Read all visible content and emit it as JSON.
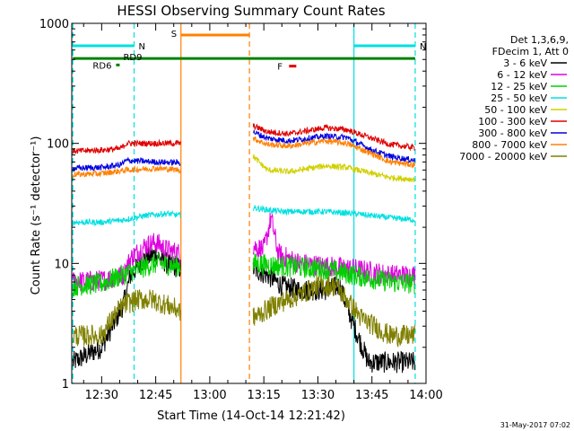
{
  "chart_data": {
    "type": "line",
    "title": "HESSI Observing Summary Count Rates",
    "xlabel": "Start Time (14-Oct-14 12:21:42)",
    "ylabel": "Count Rate (s⁻¹ detector⁻¹)",
    "yscale": "log",
    "ylim": [
      1,
      1000
    ],
    "xlim": [
      "12:21:42",
      "14:00:00"
    ],
    "x_ticks": [
      "12:30",
      "12:45",
      "13:00",
      "13:15",
      "13:30",
      "13:45",
      "14:00"
    ],
    "y_ticks": [
      "1",
      "10",
      "100",
      "1000"
    ],
    "date_stamp": "31-May-2017 07:02",
    "legend_header": [
      "Det 1,3,6,9,",
      "FDecim 1, Att 0"
    ],
    "legend_position": "right",
    "series": [
      {
        "name": "3 - 6 keV",
        "color": "#000000",
        "values": [
          {
            "x": "12:22",
            "y": 1.5
          },
          {
            "x": "12:30",
            "y": 2.0
          },
          {
            "x": "12:36",
            "y": 4.5
          },
          {
            "x": "12:38",
            "y": 8.0
          },
          {
            "x": "12:42",
            "y": 11.0
          },
          {
            "x": "12:45",
            "y": 12.0
          },
          {
            "x": "12:48",
            "y": 10.0
          },
          {
            "x": "12:52",
            "y": 9.0
          },
          {
            "x": "13:12",
            "y": 9.0
          },
          {
            "x": "13:16",
            "y": 8.0
          },
          {
            "x": "13:20",
            "y": 6.5
          },
          {
            "x": "13:25",
            "y": 6.0
          },
          {
            "x": "13:32",
            "y": 6.0
          },
          {
            "x": "13:36",
            "y": 6.5
          },
          {
            "x": "13:40",
            "y": 3.0
          },
          {
            "x": "13:44",
            "y": 1.5
          },
          {
            "x": "13:50",
            "y": 1.5
          },
          {
            "x": "13:57",
            "y": 1.5
          }
        ]
      },
      {
        "name": "6 - 12 keV",
        "color": "#e000e0",
        "values": [
          {
            "x": "12:22",
            "y": 7.0
          },
          {
            "x": "12:30",
            "y": 7.2
          },
          {
            "x": "12:36",
            "y": 8.0
          },
          {
            "x": "12:38",
            "y": 11.0
          },
          {
            "x": "12:42",
            "y": 14.0
          },
          {
            "x": "12:45",
            "y": 15.0
          },
          {
            "x": "12:48",
            "y": 13.0
          },
          {
            "x": "12:52",
            "y": 12.0
          },
          {
            "x": "13:12",
            "y": 14.0
          },
          {
            "x": "13:15",
            "y": 13.0
          },
          {
            "x": "13:17",
            "y": 24.0
          },
          {
            "x": "13:19",
            "y": 12.0
          },
          {
            "x": "13:25",
            "y": 10.0
          },
          {
            "x": "13:32",
            "y": 9.5
          },
          {
            "x": "13:40",
            "y": 9.0
          },
          {
            "x": "13:50",
            "y": 8.0
          },
          {
            "x": "13:57",
            "y": 8.0
          }
        ]
      },
      {
        "name": "12 - 25 keV",
        "color": "#00d000",
        "values": [
          {
            "x": "12:22",
            "y": 6.5
          },
          {
            "x": "12:30",
            "y": 6.8
          },
          {
            "x": "12:38",
            "y": 8.5
          },
          {
            "x": "12:45",
            "y": 10.0
          },
          {
            "x": "12:52",
            "y": 9.5
          },
          {
            "x": "13:12",
            "y": 10.0
          },
          {
            "x": "13:20",
            "y": 9.5
          },
          {
            "x": "13:32",
            "y": 9.0
          },
          {
            "x": "13:40",
            "y": 8.0
          },
          {
            "x": "13:50",
            "y": 7.0
          },
          {
            "x": "13:57",
            "y": 6.8
          }
        ]
      },
      {
        "name": "25 - 50 keV",
        "color": "#00e0e0",
        "values": [
          {
            "x": "12:22",
            "y": 22.0
          },
          {
            "x": "12:30",
            "y": 22.0
          },
          {
            "x": "12:36",
            "y": 23.0
          },
          {
            "x": "12:42",
            "y": 25.0
          },
          {
            "x": "12:48",
            "y": 26.0
          },
          {
            "x": "12:52",
            "y": 25.0
          },
          {
            "x": "13:12",
            "y": 29.0
          },
          {
            "x": "13:20",
            "y": 27.0
          },
          {
            "x": "13:32",
            "y": 27.0
          },
          {
            "x": "13:40",
            "y": 26.0
          },
          {
            "x": "13:50",
            "y": 24.0
          },
          {
            "x": "13:57",
            "y": 23.0
          }
        ]
      },
      {
        "name": "50 - 100 keV",
        "color": "#d0d000",
        "values": [
          {
            "x": "13:12",
            "y": 78.0
          },
          {
            "x": "13:16",
            "y": 60.0
          },
          {
            "x": "13:22",
            "y": 58.0
          },
          {
            "x": "13:32",
            "y": 65.0
          },
          {
            "x": "13:38",
            "y": 63.0
          },
          {
            "x": "13:45",
            "y": 56.0
          },
          {
            "x": "13:50",
            "y": 52.0
          },
          {
            "x": "13:57",
            "y": 50.0
          }
        ]
      },
      {
        "name": "100 - 300 keV",
        "color": "#e00000",
        "values": [
          {
            "x": "12:22",
            "y": 86.0
          },
          {
            "x": "12:30",
            "y": 88.0
          },
          {
            "x": "12:35",
            "y": 90.0
          },
          {
            "x": "12:37",
            "y": 100.0
          },
          {
            "x": "12:45",
            "y": 100.0
          },
          {
            "x": "12:52",
            "y": 100.0
          },
          {
            "x": "13:12",
            "y": 140.0
          },
          {
            "x": "13:16",
            "y": 125.0
          },
          {
            "x": "13:22",
            "y": 120.0
          },
          {
            "x": "13:32",
            "y": 135.0
          },
          {
            "x": "13:38",
            "y": 130.0
          },
          {
            "x": "13:45",
            "y": 110.0
          },
          {
            "x": "13:50",
            "y": 98.0
          },
          {
            "x": "13:57",
            "y": 92.0
          }
        ]
      },
      {
        "name": "300 - 800 keV",
        "color": "#0000e0",
        "values": [
          {
            "x": "12:22",
            "y": 62.0
          },
          {
            "x": "12:30",
            "y": 63.0
          },
          {
            "x": "12:35",
            "y": 66.0
          },
          {
            "x": "12:37",
            "y": 72.0
          },
          {
            "x": "12:45",
            "y": 70.0
          },
          {
            "x": "12:52",
            "y": 69.0
          },
          {
            "x": "13:12",
            "y": 125.0
          },
          {
            "x": "13:16",
            "y": 110.0
          },
          {
            "x": "13:22",
            "y": 105.0
          },
          {
            "x": "13:32",
            "y": 115.0
          },
          {
            "x": "13:38",
            "y": 112.0
          },
          {
            "x": "13:45",
            "y": 88.0
          },
          {
            "x": "13:50",
            "y": 78.0
          },
          {
            "x": "13:57",
            "y": 72.0
          }
        ]
      },
      {
        "name": "800 - 7000 keV",
        "color": "#ff8000",
        "values": [
          {
            "x": "12:22",
            "y": 55.0
          },
          {
            "x": "12:30",
            "y": 56.0
          },
          {
            "x": "12:37",
            "y": 60.0
          },
          {
            "x": "12:45",
            "y": 62.0
          },
          {
            "x": "12:52",
            "y": 60.0
          },
          {
            "x": "13:12",
            "y": 110.0
          },
          {
            "x": "13:16",
            "y": 98.0
          },
          {
            "x": "13:22",
            "y": 95.0
          },
          {
            "x": "13:32",
            "y": 105.0
          },
          {
            "x": "13:38",
            "y": 100.0
          },
          {
            "x": "13:45",
            "y": 82.0
          },
          {
            "x": "13:50",
            "y": 70.0
          },
          {
            "x": "13:57",
            "y": 66.0
          }
        ]
      },
      {
        "name": "7000 - 20000 keV",
        "color": "#808000",
        "values": [
          {
            "x": "12:22",
            "y": 2.5
          },
          {
            "x": "12:30",
            "y": 2.5
          },
          {
            "x": "12:33",
            "y": 3.5
          },
          {
            "x": "12:36",
            "y": 4.5
          },
          {
            "x": "12:40",
            "y": 5.0
          },
          {
            "x": "12:44",
            "y": 5.0
          },
          {
            "x": "12:48",
            "y": 4.5
          },
          {
            "x": "12:52",
            "y": 4.0
          },
          {
            "x": "13:12",
            "y": 3.5
          },
          {
            "x": "13:18",
            "y": 4.5
          },
          {
            "x": "13:25",
            "y": 5.5
          },
          {
            "x": "13:30",
            "y": 6.5
          },
          {
            "x": "13:35",
            "y": 6.5
          },
          {
            "x": "13:38",
            "y": 5.0
          },
          {
            "x": "13:42",
            "y": 3.5
          },
          {
            "x": "13:50",
            "y": 2.5
          },
          {
            "x": "13:57",
            "y": 2.5
          }
        ]
      }
    ],
    "flags": [
      {
        "label": "N",
        "color": "#00e0e0",
        "start": "12:22",
        "end": "12:39",
        "level": 650,
        "bound_style": "dashed"
      },
      {
        "label": "N",
        "color": "#00e0e0",
        "start": "13:40",
        "end": "13:57",
        "level": 650,
        "bound_style": "dashed",
        "start_style": "solid"
      },
      {
        "label": "S",
        "color": "#ff8000",
        "start": "12:52",
        "end": "13:11",
        "level": 800,
        "bound_style": "dashed",
        "start_style": "solid"
      },
      {
        "label": "F",
        "color": "#e00000",
        "start": "13:22",
        "end": "13:24",
        "level": 440
      },
      {
        "label": "RD9",
        "color": "#008000",
        "start": "12:22",
        "end": "13:57",
        "level": 510
      },
      {
        "label": "RD6",
        "color": "#008000",
        "start": "12:34",
        "end": "12:35",
        "level": 450
      }
    ],
    "data_gap": {
      "start": "12:52",
      "end": "13:12"
    }
  }
}
